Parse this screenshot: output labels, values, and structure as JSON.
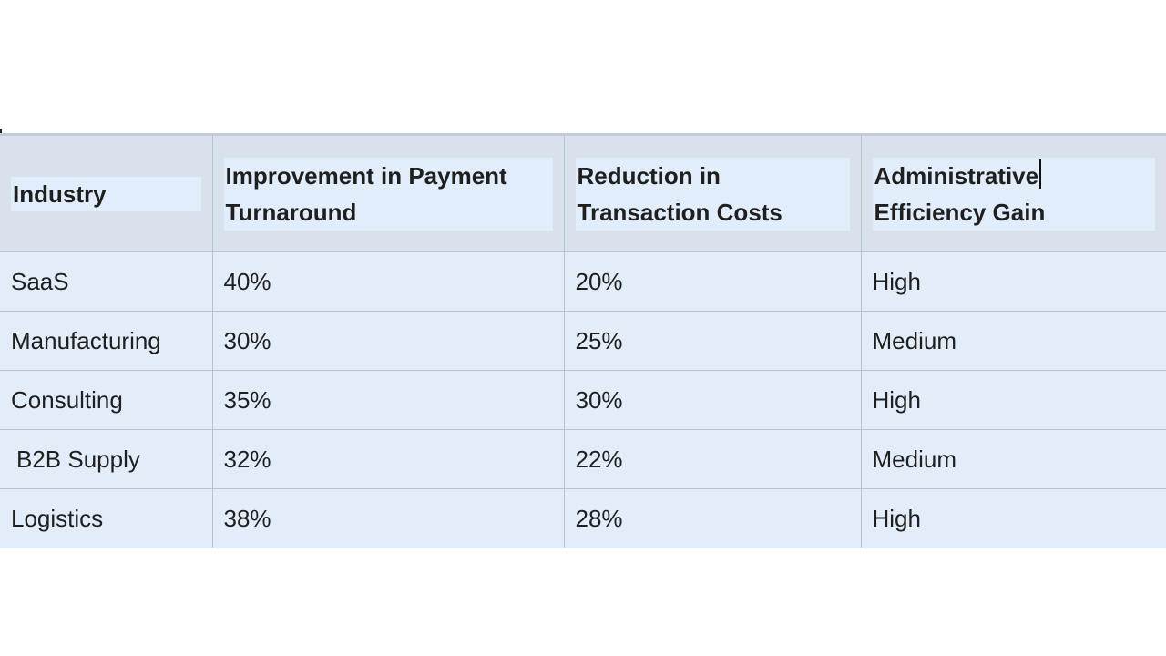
{
  "table": {
    "headers": [
      "Industry",
      "Improvement in Payment Turnaround",
      "Reduction in Transaction Costs",
      "Administrative Efficiency Gain"
    ],
    "header_lines": [
      [
        "Industry"
      ],
      [
        "Improvement in Payment",
        "Turnaround"
      ],
      [
        "Reduction in",
        "Transaction Costs"
      ],
      [
        "Administrative",
        "Efficiency Gain"
      ]
    ],
    "rows": [
      [
        "SaaS",
        "40%",
        "20%",
        "High"
      ],
      [
        "Manufacturing",
        "30%",
        "25%",
        "Medium"
      ],
      [
        "Consulting",
        "35%",
        "30%",
        "High"
      ],
      [
        "B2B Supply",
        "32%",
        "22%",
        "Medium"
      ],
      [
        "Logistics",
        "38%",
        "28%",
        "High"
      ]
    ]
  },
  "colors": {
    "cell_background": "#e3edf9",
    "header_background": "#d8e1ec",
    "border": "#b9c2cf",
    "text": "#1f1f1f"
  }
}
